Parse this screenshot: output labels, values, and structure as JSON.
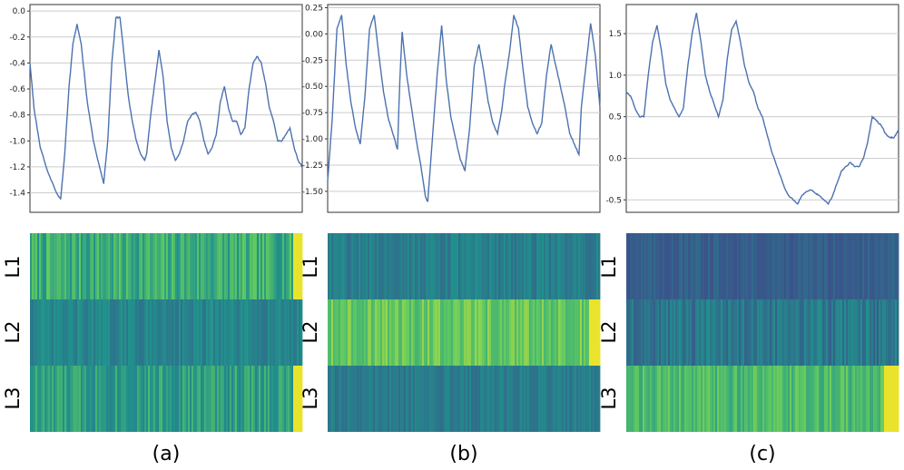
{
  "chart_data": [
    {
      "type": "line",
      "panel": "a",
      "caption": "(a)",
      "y_ticks": [
        "0.0",
        "-0.2",
        "-0.4",
        "-0.6",
        "-0.8",
        "-1.0",
        "-1.2",
        "-1.4"
      ],
      "ylim": [
        -1.55,
        0.05
      ],
      "grid": "horizontal",
      "keypoints": [
        [
          0,
          -0.4
        ],
        [
          2,
          -0.75
        ],
        [
          5,
          -1.05
        ],
        [
          9,
          -1.25
        ],
        [
          13,
          -1.4
        ],
        [
          15,
          -1.45
        ],
        [
          17,
          -1.1
        ],
        [
          19,
          -0.6
        ],
        [
          21,
          -0.25
        ],
        [
          23,
          -0.1
        ],
        [
          25,
          -0.25
        ],
        [
          28,
          -0.7
        ],
        [
          31,
          -1.0
        ],
        [
          34,
          -1.2
        ],
        [
          36,
          -1.33
        ],
        [
          38,
          -1.0
        ],
        [
          40,
          -0.4
        ],
        [
          42,
          -0.05
        ],
        [
          44,
          -0.05
        ],
        [
          46,
          -0.35
        ],
        [
          48,
          -0.65
        ],
        [
          50,
          -0.85
        ],
        [
          52,
          -1.0
        ],
        [
          54,
          -1.1
        ],
        [
          56,
          -1.15
        ],
        [
          57,
          -1.1
        ],
        [
          59,
          -0.8
        ],
        [
          61,
          -0.55
        ],
        [
          63,
          -0.3
        ],
        [
          65,
          -0.5
        ],
        [
          67,
          -0.85
        ],
        [
          69,
          -1.05
        ],
        [
          71,
          -1.15
        ],
        [
          73,
          -1.1
        ],
        [
          75,
          -1.0
        ],
        [
          77,
          -0.85
        ],
        [
          79,
          -0.8
        ],
        [
          81,
          -0.78
        ],
        [
          83,
          -0.85
        ],
        [
          85,
          -1.0
        ],
        [
          87,
          -1.1
        ],
        [
          89,
          -1.05
        ],
        [
          91,
          -0.95
        ],
        [
          93,
          -0.7
        ],
        [
          95,
          -0.58
        ],
        [
          97,
          -0.75
        ],
        [
          99,
          -0.85
        ],
        [
          101,
          -0.85
        ],
        [
          103,
          -0.95
        ],
        [
          105,
          -0.9
        ],
        [
          107,
          -0.6
        ],
        [
          109,
          -0.4
        ],
        [
          111,
          -0.35
        ],
        [
          113,
          -0.4
        ],
        [
          115,
          -0.55
        ],
        [
          117,
          -0.75
        ],
        [
          119,
          -0.85
        ],
        [
          121,
          -1.0
        ],
        [
          123,
          -1.0
        ],
        [
          125,
          -0.95
        ],
        [
          127,
          -0.9
        ],
        [
          129,
          -1.05
        ],
        [
          131,
          -1.15
        ],
        [
          133,
          -1.2
        ]
      ],
      "heatmap": {
        "rows": [
          "L1",
          "L2",
          "L3"
        ],
        "row_means": [
          0.62,
          0.45,
          0.56
        ],
        "row_spread": [
          0.14,
          0.07,
          0.12
        ],
        "hot_end": [
          true,
          false,
          true
        ],
        "hot_fraction": 0.03
      }
    },
    {
      "type": "line",
      "panel": "b",
      "caption": "(b)",
      "y_ticks": [
        "0.25",
        "0.00",
        "-0.25",
        "-0.50",
        "-0.75",
        "-1.00",
        "-1.25",
        "-1.50"
      ],
      "ylim": [
        -1.7,
        0.28
      ],
      "grid": "horizontal",
      "keypoints": [
        [
          0,
          -1.4
        ],
        [
          2,
          -0.8
        ],
        [
          4,
          0.05
        ],
        [
          6,
          0.18
        ],
        [
          8,
          -0.3
        ],
        [
          10,
          -0.65
        ],
        [
          12,
          -0.9
        ],
        [
          14,
          -1.05
        ],
        [
          16,
          -0.6
        ],
        [
          18,
          0.05
        ],
        [
          20,
          0.18
        ],
        [
          22,
          -0.2
        ],
        [
          24,
          -0.55
        ],
        [
          26,
          -0.8
        ],
        [
          28,
          -0.95
        ],
        [
          30,
          -1.1
        ],
        [
          31,
          -0.45
        ],
        [
          32,
          0.02
        ],
        [
          34,
          -0.4
        ],
        [
          36,
          -0.7
        ],
        [
          38,
          -1.0
        ],
        [
          40,
          -1.25
        ],
        [
          42,
          -1.55
        ],
        [
          43,
          -1.6
        ],
        [
          45,
          -1.0
        ],
        [
          47,
          -0.4
        ],
        [
          49,
          0.08
        ],
        [
          51,
          -0.45
        ],
        [
          53,
          -0.8
        ],
        [
          55,
          -1.0
        ],
        [
          57,
          -1.2
        ],
        [
          59,
          -1.3
        ],
        [
          61,
          -0.9
        ],
        [
          63,
          -0.3
        ],
        [
          65,
          -0.1
        ],
        [
          67,
          -0.35
        ],
        [
          69,
          -0.65
        ],
        [
          71,
          -0.85
        ],
        [
          73,
          -0.95
        ],
        [
          75,
          -0.7
        ],
        [
          76,
          -0.5
        ],
        [
          78,
          -0.2
        ],
        [
          80,
          0.18
        ],
        [
          82,
          0.05
        ],
        [
          84,
          -0.35
        ],
        [
          86,
          -0.7
        ],
        [
          88,
          -0.85
        ],
        [
          90,
          -0.95
        ],
        [
          92,
          -0.85
        ],
        [
          94,
          -0.4
        ],
        [
          96,
          -0.1
        ],
        [
          98,
          -0.3
        ],
        [
          100,
          -0.5
        ],
        [
          102,
          -0.7
        ],
        [
          104,
          -0.95
        ],
        [
          106,
          -1.05
        ],
        [
          108,
          -1.15
        ],
        [
          109,
          -0.7
        ],
        [
          111,
          -0.3
        ],
        [
          113,
          0.1
        ],
        [
          115,
          -0.2
        ],
        [
          117,
          -0.7
        ]
      ],
      "heatmap": {
        "rows": [
          "L1",
          "L2",
          "L3"
        ],
        "row_means": [
          0.43,
          0.75,
          0.42
        ],
        "row_spread": [
          0.07,
          0.1,
          0.06
        ],
        "hot_end": [
          false,
          true,
          false
        ],
        "hot_fraction": 0.04
      }
    },
    {
      "type": "line",
      "panel": "c",
      "caption": "(c)",
      "y_ticks": [
        "1.5",
        "1.0",
        "0.5",
        "0.0",
        "-0.5"
      ],
      "ylim": [
        -0.65,
        1.85
      ],
      "grid": "horizontal",
      "keypoints": [
        [
          0,
          0.8
        ],
        [
          2,
          0.75
        ],
        [
          4,
          0.6
        ],
        [
          6,
          0.5
        ],
        [
          8,
          0.5
        ],
        [
          10,
          1.0
        ],
        [
          12,
          1.4
        ],
        [
          14,
          1.6
        ],
        [
          16,
          1.3
        ],
        [
          18,
          0.9
        ],
        [
          20,
          0.7
        ],
        [
          22,
          0.6
        ],
        [
          24,
          0.5
        ],
        [
          26,
          0.6
        ],
        [
          28,
          1.1
        ],
        [
          30,
          1.5
        ],
        [
          32,
          1.75
        ],
        [
          34,
          1.4
        ],
        [
          36,
          1.0
        ],
        [
          38,
          0.8
        ],
        [
          40,
          0.65
        ],
        [
          42,
          0.5
        ],
        [
          44,
          0.7
        ],
        [
          46,
          1.2
        ],
        [
          48,
          1.55
        ],
        [
          50,
          1.65
        ],
        [
          52,
          1.4
        ],
        [
          54,
          1.1
        ],
        [
          56,
          0.9
        ],
        [
          58,
          0.8
        ],
        [
          60,
          0.6
        ],
        [
          62,
          0.5
        ],
        [
          64,
          0.3
        ],
        [
          66,
          0.1
        ],
        [
          68,
          -0.05
        ],
        [
          70,
          -0.2
        ],
        [
          72,
          -0.35
        ],
        [
          74,
          -0.45
        ],
        [
          76,
          -0.5
        ],
        [
          78,
          -0.55
        ],
        [
          80,
          -0.45
        ],
        [
          82,
          -0.4
        ],
        [
          84,
          -0.38
        ],
        [
          86,
          -0.42
        ],
        [
          88,
          -0.45
        ],
        [
          90,
          -0.5
        ],
        [
          92,
          -0.55
        ],
        [
          94,
          -0.45
        ],
        [
          96,
          -0.3
        ],
        [
          98,
          -0.15
        ],
        [
          100,
          -0.1
        ],
        [
          102,
          -0.05
        ],
        [
          104,
          -0.1
        ],
        [
          106,
          -0.1
        ],
        [
          108,
          0.0
        ],
        [
          110,
          0.2
        ],
        [
          112,
          0.5
        ],
        [
          114,
          0.45
        ],
        [
          116,
          0.4
        ],
        [
          118,
          0.3
        ],
        [
          120,
          0.25
        ],
        [
          122,
          0.25
        ],
        [
          124,
          0.35
        ]
      ],
      "heatmap": {
        "rows": [
          "L1",
          "L2",
          "L3"
        ],
        "row_means": [
          0.3,
          0.4,
          0.68
        ],
        "row_spread": [
          0.05,
          0.1,
          0.1
        ],
        "hot_end": [
          false,
          false,
          true
        ],
        "hot_fraction": 0.05
      }
    }
  ],
  "colors": {
    "line": "#4c72b0",
    "grid": "#cccccc",
    "axis": "#333333"
  }
}
